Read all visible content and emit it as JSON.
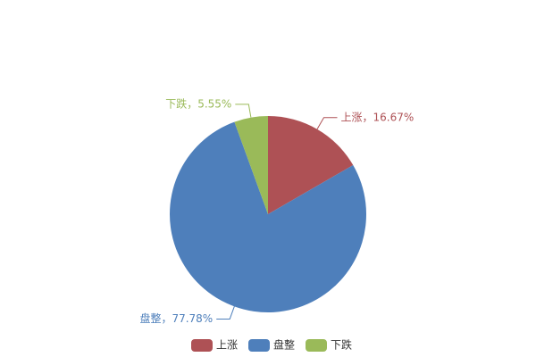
{
  "chart_data": {
    "type": "pie",
    "categories": [
      "上涨",
      "盘整",
      "下跌"
    ],
    "values": [
      16.67,
      77.78,
      5.55
    ],
    "value_labels": [
      "上涨，16.67%",
      "盘整，77.78%",
      "下跌，5.55%"
    ],
    "colors": [
      "#ae5155",
      "#4e7fbb",
      "#9aba59"
    ],
    "legend": "bottom"
  }
}
